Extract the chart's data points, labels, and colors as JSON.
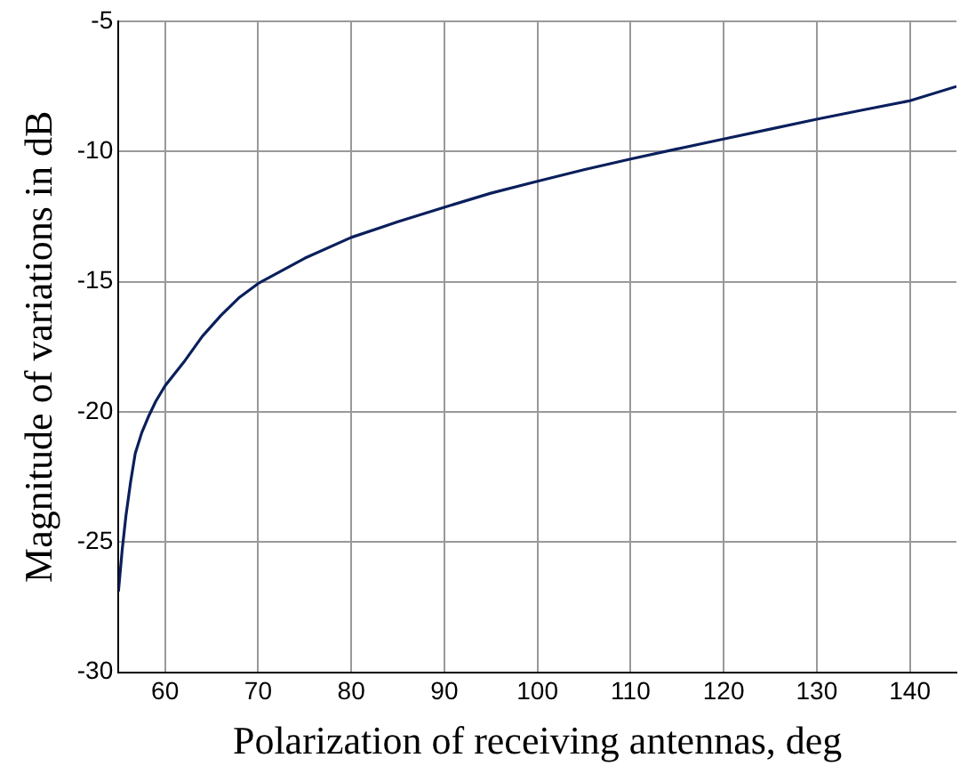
{
  "chart_data": {
    "type": "line",
    "xlabel": "Polarization of receiving antennas, deg",
    "ylabel": "Magnitude of variations in dB",
    "x": [
      55,
      55.4,
      55.8,
      56.3,
      56.8,
      57.5,
      58.2,
      59,
      60,
      62,
      64,
      66,
      68,
      70,
      75,
      80,
      85,
      90,
      95,
      100,
      105,
      110,
      115,
      120,
      125,
      130,
      135,
      140,
      145
    ],
    "series": [
      {
        "color": "#0a1f5c",
        "values": [
          -26.9,
          -25.3,
          -24,
          -22.7,
          -21.6,
          -20.8,
          -20.2,
          -19.6,
          -19,
          -18.1,
          -17.1,
          -16.3,
          -15.6,
          -15.07,
          -14.1,
          -13.3,
          -12.7,
          -12.14,
          -11.6,
          -11.14,
          -10.7,
          -10.29,
          -9.9,
          -9.52,
          -9.14,
          -8.76,
          -8.4,
          -8.05,
          -7.5
        ]
      }
    ],
    "xlim": [
      55,
      145
    ],
    "xticks": [
      60,
      70,
      80,
      90,
      100,
      110,
      120,
      130,
      140
    ],
    "ylim": [
      -30,
      -5
    ],
    "yticks": [
      -30,
      -25,
      -20,
      -15,
      -10,
      -5
    ],
    "grid": true,
    "legend": false,
    "marker": "none",
    "line_style": "solid"
  }
}
